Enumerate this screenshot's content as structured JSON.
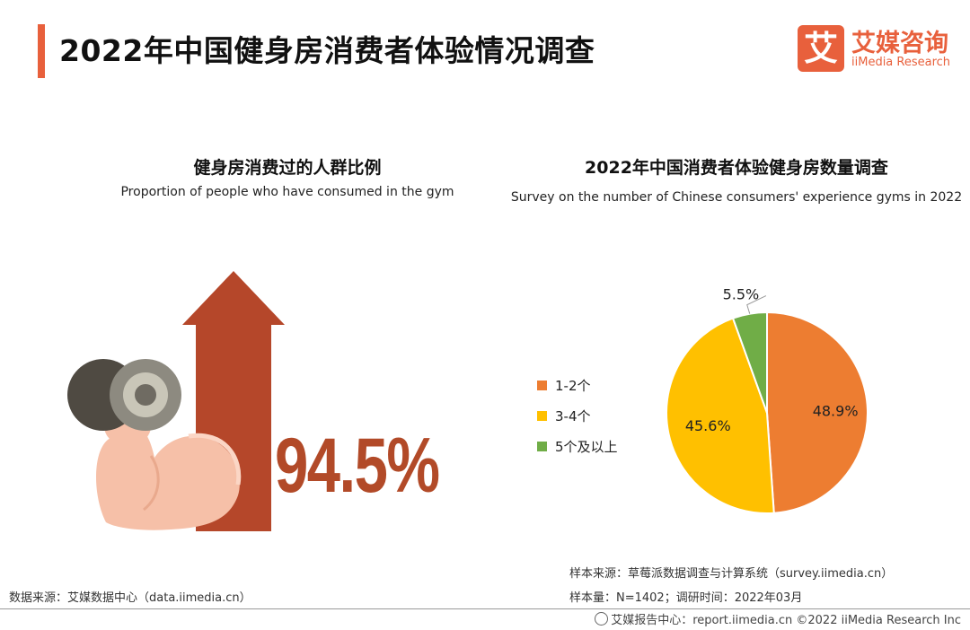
{
  "header": {
    "title": "2022年中国健身房消费者体验情况调查",
    "logo_mark": "艾",
    "logo_cn": "艾媒咨询",
    "logo_en": "iiMedia Research"
  },
  "left_panel": {
    "title_cn": "健身房消费过的人群比例",
    "title_en": "Proportion of people who have consumed in the gym",
    "percent_label": "94.5%",
    "percent_value": 94.5
  },
  "chart_data": {
    "type": "pie",
    "title": "2022年中国消费者体验健身房数量调查",
    "subtitle": "Survey on the number of Chinese consumers' experience gyms in 2022",
    "categories": [
      "1-2个",
      "3-4个",
      "5个及以上"
    ],
    "values": [
      48.9,
      45.6,
      5.5
    ],
    "labels": [
      "48.9%",
      "45.6%",
      "5.5%"
    ],
    "colors": [
      "#ed7d31",
      "#ffc000",
      "#70ad47"
    ],
    "legend_position": "left"
  },
  "sources": {
    "left": "数据来源：艾媒数据中心（data.iimedia.cn）",
    "right_line1": "样本来源：草莓派数据调查与计算系统（survey.iimedia.cn）",
    "right_line2": "样本量：N=1402；调研时间：2022年03月"
  },
  "footer": {
    "text": "艾媒报告中心：report.iimedia.cn ©2022 iiMedia Research Inc"
  }
}
